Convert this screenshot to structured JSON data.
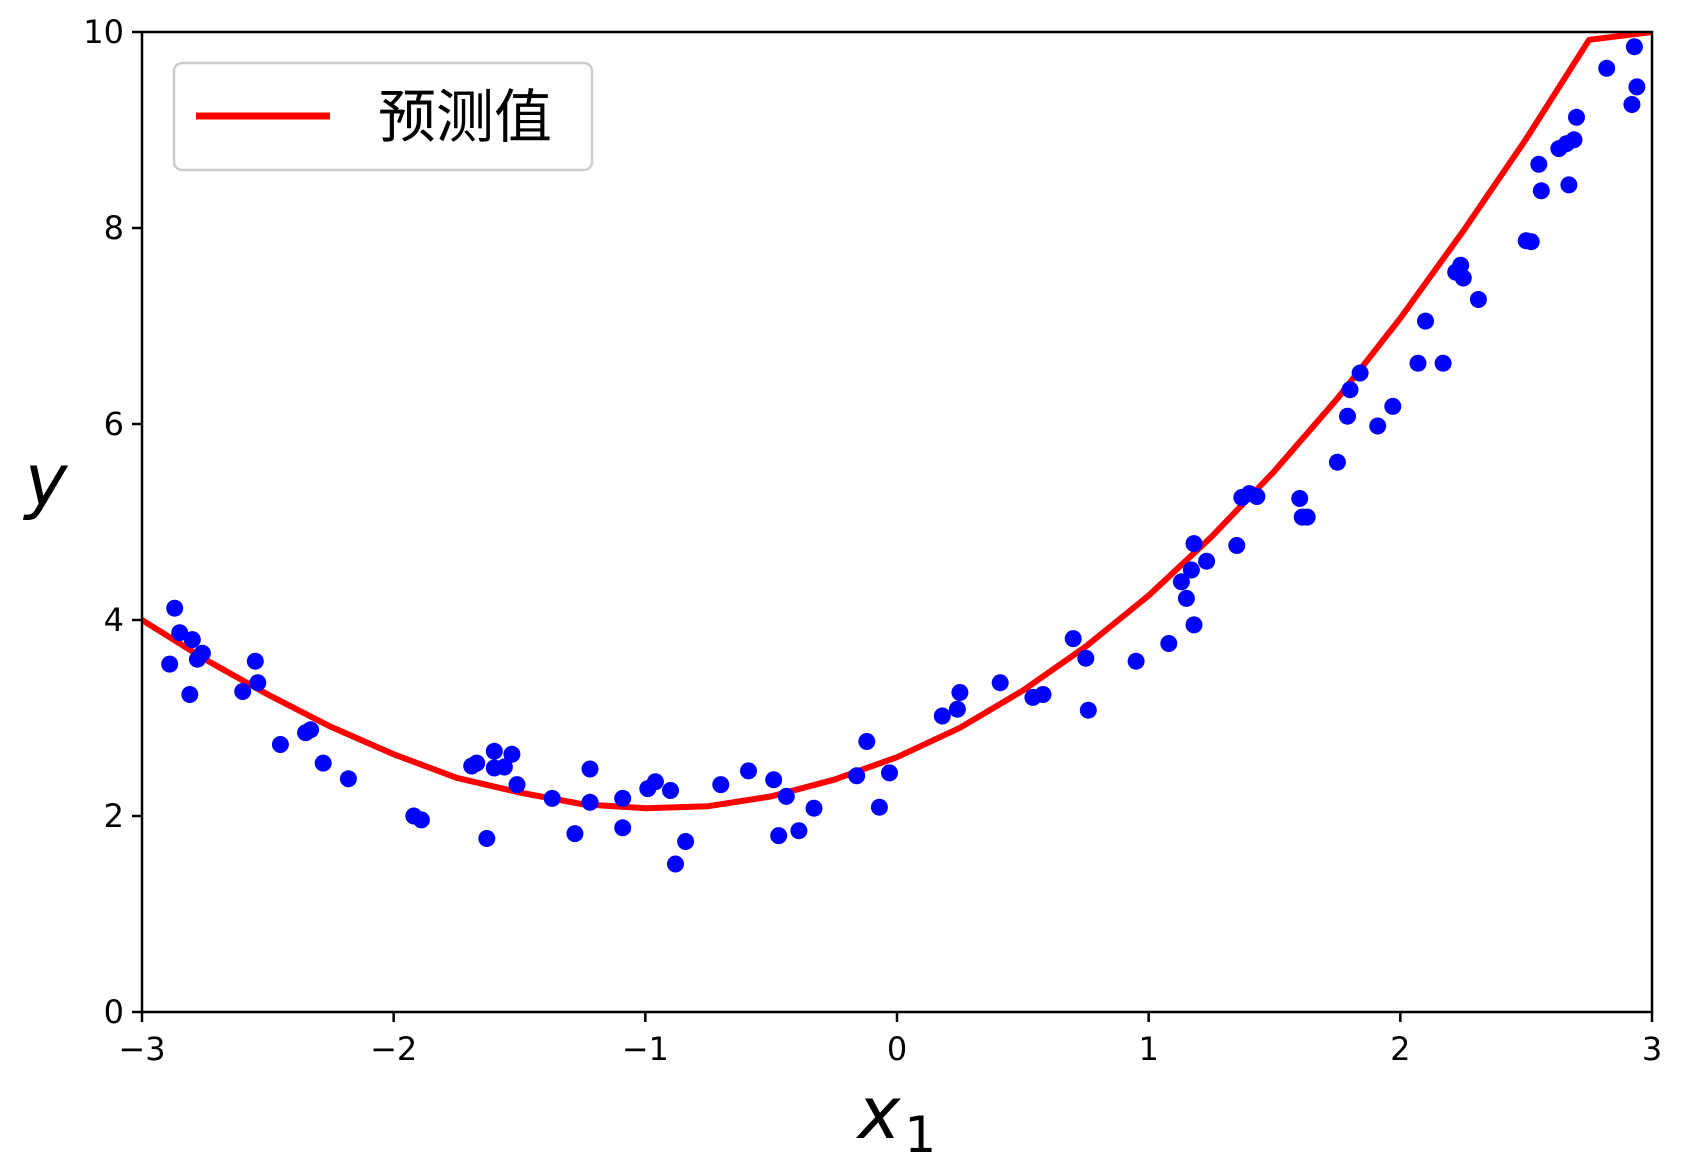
{
  "chart_data": {
    "type": "scatter",
    "title": "",
    "xlabel": {
      "base": "x",
      "subscript": "1"
    },
    "ylabel": "y",
    "xlim": [
      -3,
      3
    ],
    "ylim": [
      0,
      10
    ],
    "xticks": [
      -3,
      -2,
      -1,
      0,
      1,
      2,
      3
    ],
    "xtick_labels": [
      "−3",
      "−2",
      "−1",
      "0",
      "1",
      "2",
      "3"
    ],
    "yticks": [
      0,
      2,
      4,
      6,
      8,
      10
    ],
    "ytick_labels": [
      "0",
      "2",
      "4",
      "6",
      "8",
      "10"
    ],
    "grid": false,
    "legend": {
      "placement": "top-left",
      "entries": [
        {
          "label": "预测值",
          "color": "#ff0000",
          "kind": "line"
        }
      ]
    },
    "series": [
      {
        "kind": "scatter",
        "color": "#0000ff",
        "points": [
          [
            -2.89,
            3.55
          ],
          [
            -2.87,
            4.12
          ],
          [
            -2.85,
            3.87
          ],
          [
            -2.81,
            3.24
          ],
          [
            -2.8,
            3.8
          ],
          [
            -2.78,
            3.6
          ],
          [
            -2.76,
            3.66
          ],
          [
            -2.6,
            3.27
          ],
          [
            -2.55,
            3.58
          ],
          [
            -2.54,
            3.36
          ],
          [
            -2.45,
            2.73
          ],
          [
            -2.35,
            2.85
          ],
          [
            -2.33,
            2.88
          ],
          [
            -2.28,
            2.54
          ],
          [
            -2.18,
            2.38
          ],
          [
            -1.92,
            2.0
          ],
          [
            -1.89,
            1.96
          ],
          [
            -1.69,
            2.51
          ],
          [
            -1.67,
            2.54
          ],
          [
            -1.63,
            1.77
          ],
          [
            -1.6,
            2.49
          ],
          [
            -1.6,
            2.66
          ],
          [
            -1.56,
            2.5
          ],
          [
            -1.53,
            2.63
          ],
          [
            -1.51,
            2.32
          ],
          [
            -1.37,
            2.18
          ],
          [
            -1.28,
            1.82
          ],
          [
            -1.22,
            2.48
          ],
          [
            -1.22,
            2.14
          ],
          [
            -1.09,
            2.18
          ],
          [
            -1.09,
            1.88
          ],
          [
            -0.99,
            2.28
          ],
          [
            -0.96,
            2.35
          ],
          [
            -0.9,
            2.26
          ],
          [
            -0.88,
            1.51
          ],
          [
            -0.84,
            1.74
          ],
          [
            -0.7,
            2.32
          ],
          [
            -0.59,
            2.46
          ],
          [
            -0.49,
            2.37
          ],
          [
            -0.47,
            1.8
          ],
          [
            -0.44,
            2.2
          ],
          [
            -0.39,
            1.85
          ],
          [
            -0.33,
            2.08
          ],
          [
            -0.16,
            2.41
          ],
          [
            -0.12,
            2.76
          ],
          [
            -0.07,
            2.09
          ],
          [
            -0.03,
            2.44
          ],
          [
            0.18,
            3.02
          ],
          [
            0.24,
            3.09
          ],
          [
            0.25,
            3.26
          ],
          [
            0.41,
            3.36
          ],
          [
            0.54,
            3.21
          ],
          [
            0.58,
            3.24
          ],
          [
            0.7,
            3.81
          ],
          [
            0.75,
            3.61
          ],
          [
            0.76,
            3.08
          ],
          [
            0.95,
            3.58
          ],
          [
            1.08,
            3.76
          ],
          [
            1.13,
            4.39
          ],
          [
            1.15,
            4.22
          ],
          [
            1.17,
            4.51
          ],
          [
            1.18,
            3.95
          ],
          [
            1.18,
            4.78
          ],
          [
            1.23,
            4.6
          ],
          [
            1.35,
            4.76
          ],
          [
            1.37,
            5.25
          ],
          [
            1.4,
            5.29
          ],
          [
            1.43,
            5.26
          ],
          [
            1.6,
            5.24
          ],
          [
            1.61,
            5.05
          ],
          [
            1.63,
            5.05
          ],
          [
            1.75,
            5.61
          ],
          [
            1.79,
            6.08
          ],
          [
            1.8,
            6.35
          ],
          [
            1.84,
            6.52
          ],
          [
            1.91,
            5.98
          ],
          [
            1.97,
            6.18
          ],
          [
            2.07,
            6.62
          ],
          [
            2.1,
            7.05
          ],
          [
            2.17,
            6.62
          ],
          [
            2.22,
            7.55
          ],
          [
            2.24,
            7.62
          ],
          [
            2.25,
            7.49
          ],
          [
            2.31,
            7.27
          ],
          [
            2.5,
            7.87
          ],
          [
            2.52,
            7.86
          ],
          [
            2.55,
            8.65
          ],
          [
            2.56,
            8.38
          ],
          [
            2.63,
            8.81
          ],
          [
            2.66,
            8.86
          ],
          [
            2.67,
            8.44
          ],
          [
            2.69,
            8.9
          ],
          [
            2.7,
            9.13
          ],
          [
            2.82,
            9.63
          ],
          [
            2.92,
            9.26
          ],
          [
            2.93,
            9.85
          ],
          [
            2.94,
            9.44
          ]
        ]
      },
      {
        "kind": "line",
        "name": "预测值",
        "color": "#ff0000",
        "x": [
          -3.0,
          -2.75,
          -2.5,
          -2.25,
          -2.0,
          -1.75,
          -1.5,
          -1.25,
          -1.0,
          -0.75,
          -0.5,
          -0.25,
          0.0,
          0.25,
          0.5,
          0.75,
          1.0,
          1.25,
          1.5,
          1.75,
          2.0,
          2.25,
          2.5,
          2.75,
          3.0
        ],
        "y": [
          4.0,
          3.6,
          3.24,
          2.91,
          2.63,
          2.39,
          2.24,
          2.12,
          2.08,
          2.1,
          2.2,
          2.37,
          2.6,
          2.9,
          3.28,
          3.73,
          4.25,
          4.85,
          5.52,
          6.26,
          7.08,
          7.97,
          8.91,
          9.92,
          10.0
        ]
      }
    ]
  }
}
